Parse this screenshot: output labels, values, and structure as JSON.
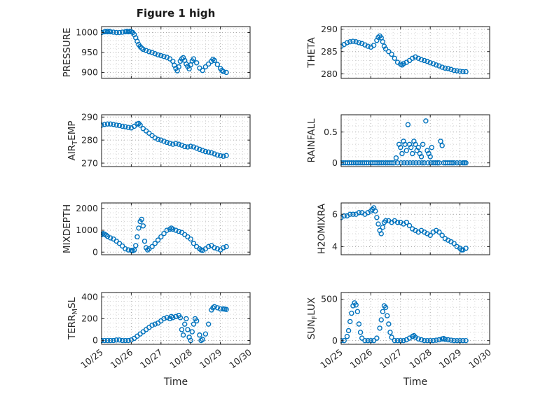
{
  "figure": {
    "title": "Figure 1 high",
    "background": "#ffffff",
    "marker_color": "#0072BD",
    "grid_major_color": "#a8a8a8",
    "grid_minor_color": "#d4d4d4",
    "axis_color": "#1a1a1a"
  },
  "axes": {
    "xlim": [
      25,
      30
    ],
    "xticks": [
      25,
      26,
      27,
      28,
      29,
      30
    ],
    "xticklabels": [
      "10/25",
      "10/26",
      "10/27",
      "10/28",
      "10/29",
      "10/30"
    ],
    "xlabel": "Time",
    "grid": true
  },
  "chart_data": [
    {
      "type": "scatter",
      "name": "pressure",
      "ylabel": "PRESSURE",
      "yticks": [
        900,
        950,
        1000
      ],
      "ylim": [
        885,
        1015
      ],
      "show_xticklabels": false,
      "x": [
        25.0,
        25.1,
        25.15,
        25.2,
        25.25,
        25.3,
        25.4,
        25.5,
        25.6,
        25.7,
        25.8,
        25.85,
        25.9,
        25.95,
        26.0,
        26.05,
        26.1,
        26.15,
        26.2,
        26.25,
        26.3,
        26.35,
        26.4,
        26.5,
        26.6,
        26.7,
        26.8,
        26.9,
        27.0,
        27.1,
        27.2,
        27.3,
        27.4,
        27.45,
        27.5,
        27.55,
        27.6,
        27.65,
        27.7,
        27.75,
        27.8,
        27.85,
        27.9,
        27.95,
        28.0,
        28.05,
        28.1,
        28.2,
        28.3,
        28.4,
        28.5,
        28.6,
        28.7,
        28.75,
        28.8,
        28.9,
        29.0,
        29.05,
        29.1,
        29.2
      ],
      "y": [
        1000,
        1002,
        1003,
        1002,
        1003,
        1002,
        1001,
        1000,
        1000,
        1001,
        1002,
        1003,
        1002,
        1003,
        1002,
        1000,
        995,
        987,
        978,
        970,
        965,
        961,
        958,
        955,
        952,
        950,
        947,
        944,
        942,
        940,
        938,
        934,
        928,
        918,
        910,
        904,
        914,
        928,
        934,
        937,
        930,
        921,
        915,
        909,
        919,
        929,
        934,
        924,
        911,
        905,
        914,
        921,
        928,
        933,
        930,
        920,
        910,
        905,
        902,
        900
      ]
    },
    {
      "type": "scatter",
      "name": "theta",
      "ylabel": "THETA",
      "yticks": [
        280,
        285,
        290
      ],
      "ylim": [
        279,
        290.6
      ],
      "show_xticklabels": false,
      "x": [
        25.0,
        25.1,
        25.2,
        25.3,
        25.4,
        25.5,
        25.6,
        25.7,
        25.8,
        25.9,
        26.0,
        26.1,
        26.2,
        26.25,
        26.3,
        26.35,
        26.4,
        26.45,
        26.5,
        26.6,
        26.7,
        26.8,
        26.9,
        27.0,
        27.05,
        27.1,
        27.2,
        27.3,
        27.4,
        27.5,
        27.6,
        27.7,
        27.8,
        27.9,
        28.0,
        28.1,
        28.2,
        28.3,
        28.4,
        28.5,
        28.6,
        28.7,
        28.8,
        28.9,
        29.0,
        29.1,
        29.2
      ],
      "y": [
        286.2,
        286.6,
        287.0,
        287.2,
        287.3,
        287.2,
        287.0,
        286.8,
        286.5,
        286.2,
        286.0,
        286.4,
        287.5,
        288.2,
        288.5,
        288.1,
        287.2,
        286.2,
        285.6,
        285.0,
        284.4,
        283.5,
        282.6,
        282.2,
        282.0,
        282.3,
        282.6,
        283.0,
        283.5,
        283.8,
        283.5,
        283.2,
        283.0,
        282.8,
        282.5,
        282.3,
        282.0,
        281.8,
        281.5,
        281.3,
        281.2,
        281.0,
        280.8,
        280.7,
        280.6,
        280.5,
        280.5
      ]
    },
    {
      "type": "scatter",
      "name": "air-temp",
      "ylabel": "AIR_TEMP",
      "yticks": [
        270,
        280,
        290
      ],
      "ylim": [
        268.5,
        291
      ],
      "show_xticklabels": false,
      "x": [
        25.0,
        25.1,
        25.2,
        25.3,
        25.4,
        25.5,
        25.6,
        25.7,
        25.8,
        25.9,
        26.0,
        26.1,
        26.2,
        26.25,
        26.3,
        26.4,
        26.5,
        26.6,
        26.7,
        26.8,
        26.9,
        27.0,
        27.1,
        27.2,
        27.3,
        27.4,
        27.5,
        27.6,
        27.7,
        27.8,
        27.9,
        28.0,
        28.1,
        28.2,
        28.3,
        28.4,
        28.5,
        28.6,
        28.7,
        28.8,
        28.9,
        29.0,
        29.1,
        29.2
      ],
      "y": [
        286.5,
        286.8,
        287.0,
        287.0,
        286.8,
        286.5,
        286.3,
        286.0,
        285.8,
        285.5,
        285.3,
        286.0,
        287.0,
        287.2,
        286.5,
        285.0,
        284.0,
        283.0,
        282.0,
        281.0,
        280.3,
        280.0,
        279.5,
        279.0,
        278.6,
        278.2,
        278.5,
        278.2,
        277.8,
        277.2,
        277.0,
        277.3,
        277.0,
        276.5,
        276.0,
        275.5,
        275.0,
        274.8,
        274.5,
        274.0,
        273.5,
        273.2,
        273.0,
        273.3
      ]
    },
    {
      "type": "scatter",
      "name": "rainfall",
      "ylabel": "RAINFALL",
      "yticks": [
        0,
        0.5
      ],
      "ylim": [
        -0.06,
        0.78
      ],
      "show_xticklabels": false,
      "x": [
        25.0,
        25.07,
        25.14,
        25.21,
        25.28,
        25.35,
        25.42,
        25.5,
        25.57,
        25.64,
        25.71,
        25.78,
        25.85,
        25.92,
        26.0,
        26.07,
        26.14,
        26.21,
        26.28,
        26.35,
        26.42,
        26.5,
        26.57,
        26.64,
        26.71,
        26.78,
        26.85,
        26.9,
        26.95,
        27.0,
        27.02,
        27.05,
        27.1,
        27.12,
        27.15,
        27.2,
        27.22,
        27.25,
        27.3,
        27.32,
        27.35,
        27.4,
        27.42,
        27.45,
        27.5,
        27.52,
        27.55,
        27.6,
        27.62,
        27.65,
        27.7,
        27.72,
        27.75,
        27.8,
        27.85,
        27.9,
        27.92,
        27.95,
        28.0,
        28.02,
        28.05,
        28.1,
        28.17,
        28.24,
        28.3,
        28.35,
        28.4,
        28.45,
        28.52,
        28.59,
        28.66,
        28.73,
        28.8,
        28.9,
        29.0,
        29.1,
        29.15,
        29.2
      ],
      "y": [
        0,
        0,
        0,
        0,
        0,
        0,
        0,
        0,
        0,
        0,
        0,
        0,
        0,
        0,
        0,
        0,
        0,
        0,
        0,
        0,
        0,
        0,
        0,
        0,
        0,
        0,
        0.08,
        0,
        0.3,
        0.25,
        0,
        0.15,
        0.35,
        0,
        0.3,
        0.2,
        0,
        0.62,
        0.3,
        0,
        0.25,
        0.15,
        0,
        0.35,
        0.3,
        0,
        0.2,
        0.25,
        0,
        0.15,
        0.1,
        0,
        0.3,
        0,
        0.68,
        0.2,
        0,
        0.15,
        0.1,
        0,
        0.25,
        0,
        0,
        0,
        0,
        0.35,
        0.28,
        0,
        0,
        0,
        0,
        0,
        0,
        0,
        0,
        0,
        0,
        0
      ]
    },
    {
      "type": "scatter",
      "name": "mixdepth",
      "ylabel": "MIXDEPTH",
      "yticks": [
        0,
        1000,
        2000
      ],
      "ylim": [
        -120,
        2250
      ],
      "show_xticklabels": false,
      "x": [
        25.0,
        25.05,
        25.1,
        25.15,
        25.2,
        25.3,
        25.4,
        25.5,
        25.6,
        25.7,
        25.8,
        25.9,
        26.0,
        26.05,
        26.1,
        26.15,
        26.2,
        26.25,
        26.3,
        26.35,
        26.4,
        26.45,
        26.5,
        26.55,
        26.6,
        26.7,
        26.8,
        26.9,
        27.0,
        27.1,
        27.2,
        27.3,
        27.35,
        27.4,
        27.5,
        27.6,
        27.7,
        27.8,
        27.9,
        28.0,
        28.1,
        28.2,
        28.3,
        28.35,
        28.4,
        28.5,
        28.6,
        28.7,
        28.8,
        28.9,
        29.0,
        29.1,
        29.2
      ],
      "y": [
        800,
        850,
        820,
        780,
        720,
        650,
        600,
        500,
        400,
        280,
        150,
        100,
        80,
        60,
        100,
        300,
        700,
        1100,
        1400,
        1500,
        1200,
        500,
        200,
        100,
        150,
        250,
        400,
        550,
        700,
        850,
        1000,
        1050,
        1100,
        1050,
        1000,
        950,
        900,
        800,
        700,
        600,
        400,
        250,
        150,
        100,
        80,
        150,
        250,
        300,
        200,
        150,
        100,
        200,
        250
      ]
    },
    {
      "type": "scatter",
      "name": "h2omixra",
      "ylabel": "H2OMIXRA",
      "yticks": [
        4,
        6
      ],
      "ylim": [
        3.5,
        6.7
      ],
      "show_xticklabels": false,
      "x": [
        25.0,
        25.1,
        25.2,
        25.3,
        25.4,
        25.5,
        25.6,
        25.7,
        25.8,
        25.9,
        26.0,
        26.05,
        26.1,
        26.15,
        26.2,
        26.25,
        26.3,
        26.35,
        26.4,
        26.45,
        26.5,
        26.6,
        26.7,
        26.8,
        26.9,
        27.0,
        27.1,
        27.2,
        27.3,
        27.4,
        27.5,
        27.6,
        27.7,
        27.8,
        27.9,
        28.0,
        28.1,
        28.2,
        28.3,
        28.4,
        28.5,
        28.6,
        28.7,
        28.8,
        28.9,
        29.0,
        29.05,
        29.1,
        29.2
      ],
      "y": [
        5.8,
        5.9,
        5.9,
        6.0,
        6.0,
        6.0,
        6.1,
        6.1,
        6.0,
        6.1,
        6.2,
        6.3,
        6.4,
        6.2,
        5.8,
        5.4,
        5.0,
        4.8,
        5.2,
        5.5,
        5.6,
        5.6,
        5.5,
        5.6,
        5.5,
        5.5,
        5.4,
        5.5,
        5.3,
        5.1,
        5.0,
        4.9,
        5.0,
        4.9,
        4.8,
        4.7,
        4.9,
        5.0,
        4.9,
        4.7,
        4.5,
        4.4,
        4.3,
        4.2,
        4.0,
        3.9,
        3.8,
        3.8,
        3.9
      ]
    },
    {
      "type": "scatter",
      "name": "terr-msl",
      "ylabel": "TERR_MSL",
      "yticks": [
        0,
        200,
        400
      ],
      "ylim": [
        -35,
        440
      ],
      "show_xticklabels": true,
      "x": [
        25.0,
        25.1,
        25.2,
        25.3,
        25.4,
        25.5,
        25.6,
        25.7,
        25.8,
        25.9,
        26.0,
        26.1,
        26.2,
        26.3,
        26.4,
        26.5,
        26.6,
        26.7,
        26.8,
        26.9,
        27.0,
        27.1,
        27.2,
        27.3,
        27.35,
        27.4,
        27.5,
        27.6,
        27.65,
        27.7,
        27.75,
        27.8,
        27.85,
        27.9,
        27.95,
        28.0,
        28.05,
        28.1,
        28.15,
        28.2,
        28.3,
        28.35,
        28.4,
        28.5,
        28.6,
        28.7,
        28.75,
        28.8,
        28.9,
        29.0,
        29.1,
        29.15,
        29.2
      ],
      "y": [
        0,
        0,
        0,
        0,
        0,
        5,
        5,
        0,
        0,
        0,
        5,
        20,
        40,
        60,
        80,
        100,
        120,
        140,
        150,
        160,
        180,
        200,
        210,
        200,
        220,
        210,
        220,
        230,
        210,
        100,
        50,
        150,
        200,
        100,
        30,
        0,
        80,
        150,
        200,
        180,
        50,
        0,
        10,
        60,
        150,
        280,
        300,
        310,
        300,
        290,
        290,
        288,
        285
      ]
    },
    {
      "type": "scatter",
      "name": "sun-flux",
      "ylabel": "SUN_FLUX",
      "yticks": [
        0,
        500
      ],
      "ylim": [
        -45,
        580
      ],
      "show_xticklabels": true,
      "x": [
        25.0,
        25.1,
        25.2,
        25.25,
        25.3,
        25.35,
        25.4,
        25.45,
        25.5,
        25.55,
        25.6,
        25.65,
        25.7,
        25.8,
        25.9,
        26.0,
        26.1,
        26.2,
        26.3,
        26.35,
        26.4,
        26.45,
        26.5,
        26.55,
        26.6,
        26.65,
        26.7,
        26.8,
        26.9,
        27.0,
        27.1,
        27.2,
        27.3,
        27.4,
        27.45,
        27.5,
        27.6,
        27.7,
        27.8,
        27.9,
        28.0,
        28.1,
        28.2,
        28.3,
        28.4,
        28.45,
        28.5,
        28.6,
        28.7,
        28.8,
        28.9,
        29.0,
        29.1,
        29.2
      ],
      "y": [
        0,
        0,
        50,
        120,
        230,
        330,
        420,
        455,
        430,
        350,
        200,
        100,
        30,
        0,
        0,
        0,
        0,
        30,
        150,
        250,
        350,
        420,
        400,
        300,
        200,
        100,
        40,
        0,
        0,
        0,
        0,
        10,
        30,
        50,
        60,
        40,
        20,
        10,
        0,
        0,
        0,
        0,
        5,
        10,
        20,
        25,
        15,
        10,
        5,
        0,
        0,
        0,
        0,
        0
      ]
    }
  ]
}
